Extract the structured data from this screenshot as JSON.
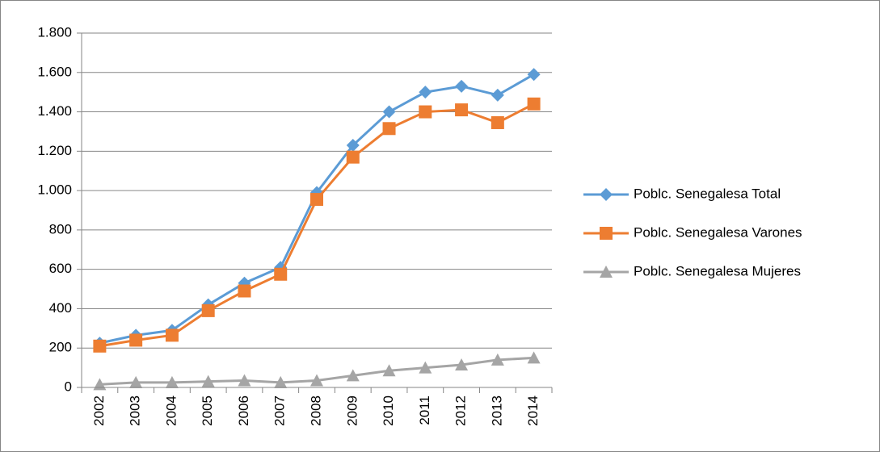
{
  "chart_data": {
    "type": "line",
    "categories": [
      "2002",
      "2003",
      "2004",
      "2005",
      "2006",
      "2007",
      "2008",
      "2009",
      "2010",
      "2011",
      "2012",
      "2013",
      "2014"
    ],
    "series": [
      {
        "name": "Poblc. Senegalesa Total",
        "color": "#5b9bd5",
        "marker": "diamond",
        "values": [
          225,
          265,
          290,
          420,
          530,
          610,
          990,
          1230,
          1400,
          1500,
          1530,
          1485,
          1590
        ]
      },
      {
        "name": "Poblc. Senegalesa Varones",
        "color": "#ed7d31",
        "marker": "square",
        "values": [
          210,
          240,
          265,
          390,
          490,
          575,
          955,
          1170,
          1315,
          1400,
          1410,
          1345,
          1440
        ]
      },
      {
        "name": "Poblc. Senegalesa Mujeres",
        "color": "#a5a5a5",
        "marker": "triangle",
        "values": [
          15,
          25,
          25,
          30,
          35,
          25,
          35,
          60,
          85,
          100,
          115,
          140,
          150
        ]
      }
    ],
    "ylim": [
      0,
      1800
    ],
    "yticks": [
      0,
      200,
      400,
      600,
      800,
      {
        "value": 1000,
        "label": "1.000"
      },
      {
        "value": 1200,
        "label": "1.200"
      },
      {
        "value": 1400,
        "label": "1.400"
      },
      {
        "value": 1600,
        "label": "1.600"
      },
      {
        "value": 1800,
        "label": "1.800"
      }
    ],
    "grid": true,
    "legend": "right"
  }
}
